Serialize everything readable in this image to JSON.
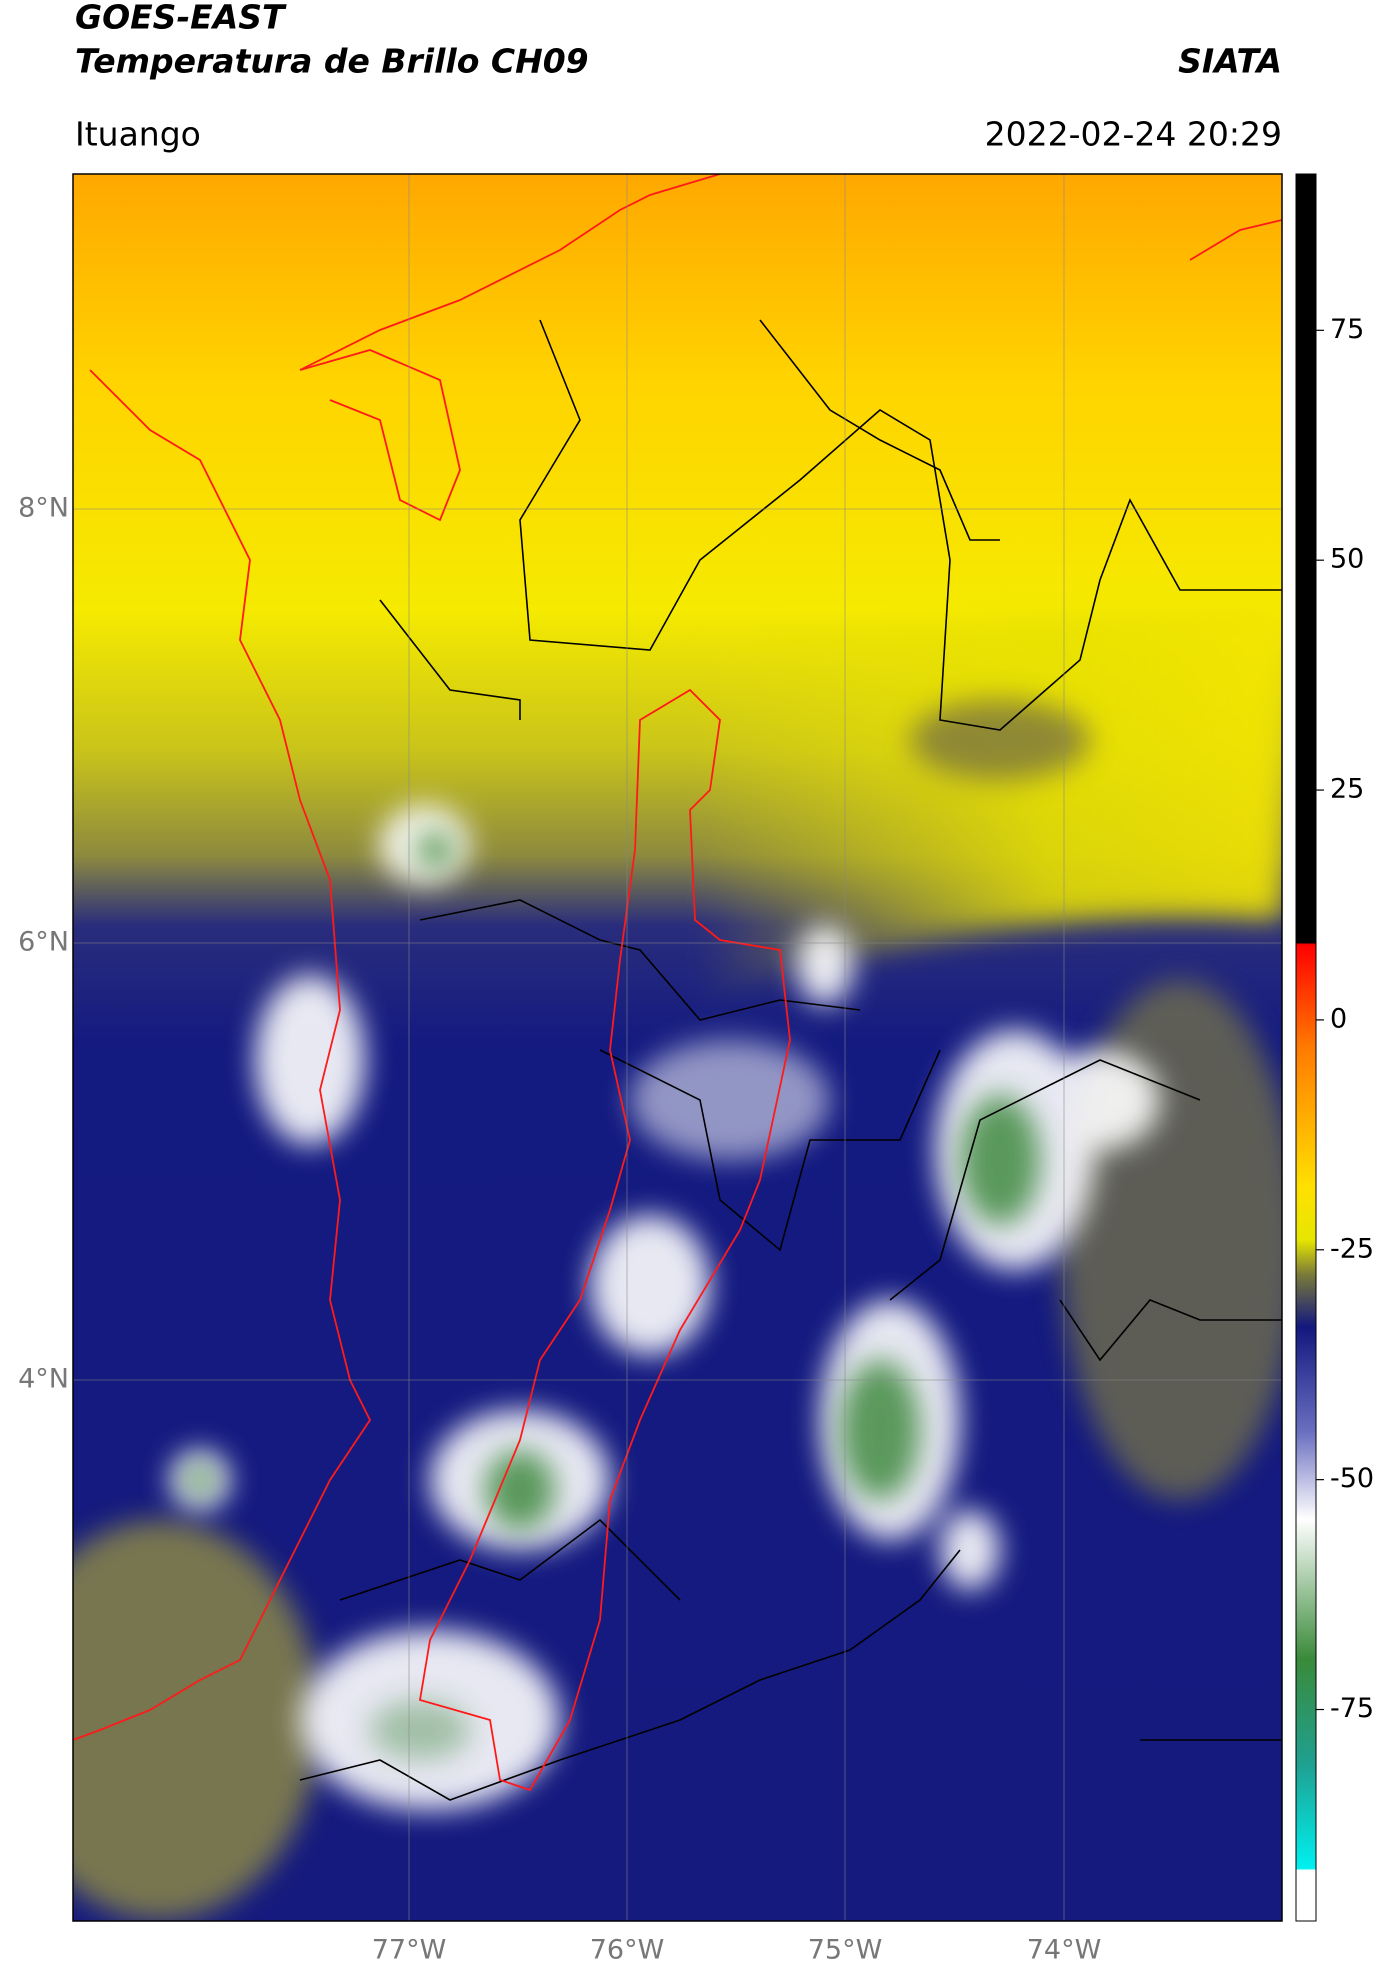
{
  "header": {
    "satellite": "GOES-EAST",
    "product": "Temperatura de Brillo CH09",
    "agency": "SIATA",
    "region": "Ituango",
    "datetime": "2022-02-24 20:29"
  },
  "map": {
    "lon_labels": [
      "77°W",
      "76°W",
      "75°W",
      "74°W"
    ],
    "lat_labels": [
      "8°N",
      "6°N",
      "4°N"
    ]
  },
  "colorbar": {
    "lim": [
      -98,
      92
    ],
    "ticks": [
      75,
      50,
      25,
      0,
      -25,
      -50,
      -75
    ]
  }
}
